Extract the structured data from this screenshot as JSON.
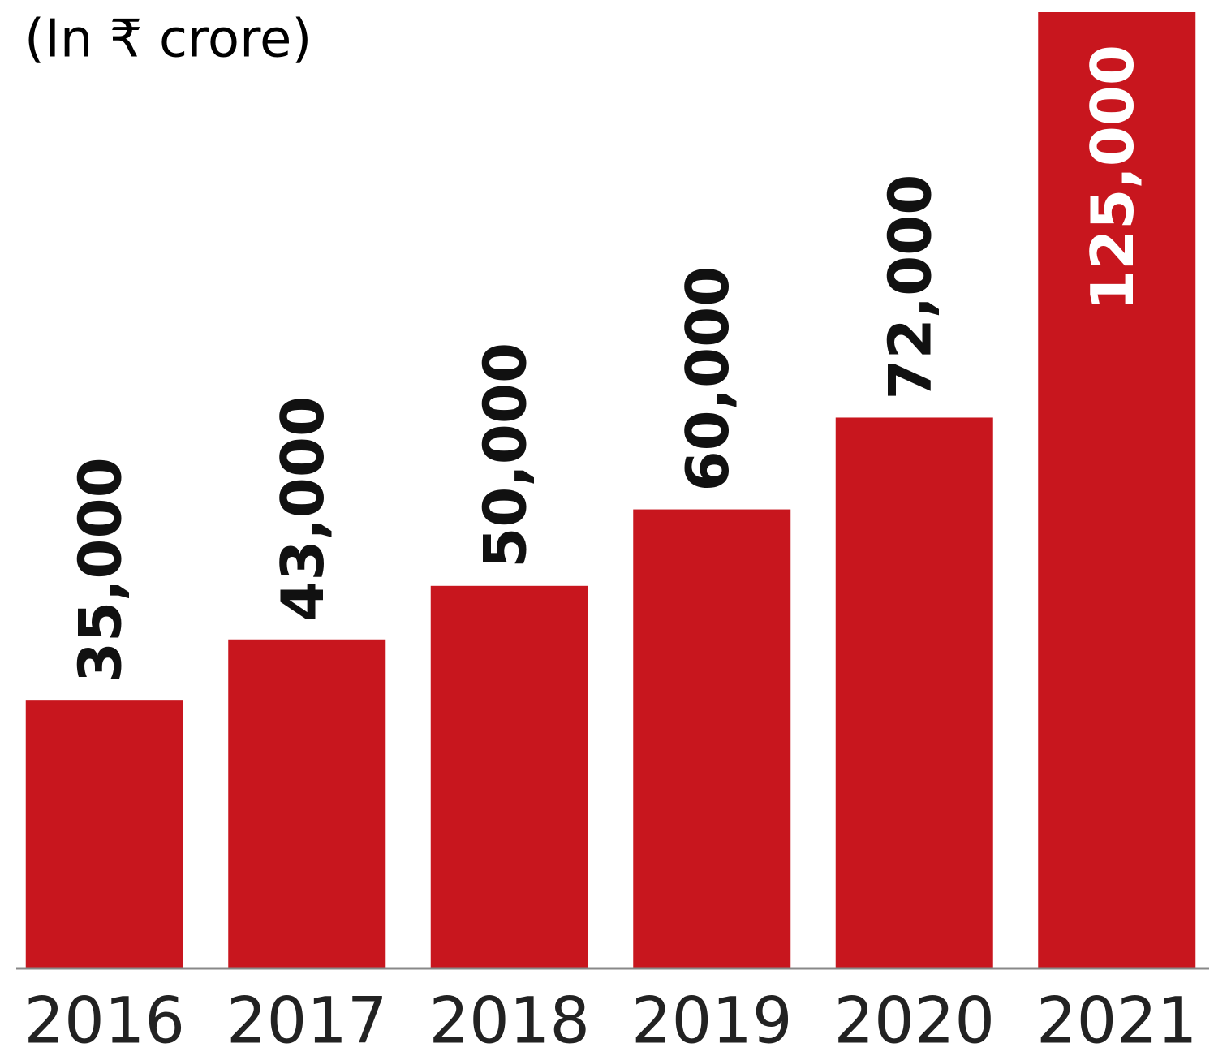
{
  "chart_data": {
    "type": "bar",
    "title": "(In ₹ crore)",
    "categories": [
      "2016",
      "2017",
      "2018",
      "2019",
      "2020",
      "2021"
    ],
    "values": [
      35000,
      43000,
      50000,
      60000,
      72000,
      125000
    ],
    "value_labels": [
      "35,000",
      "43,000",
      "50,000",
      "60,000",
      "72,000",
      "125,000"
    ],
    "color": "#c8161e",
    "ylim": [
      0,
      125000
    ]
  }
}
